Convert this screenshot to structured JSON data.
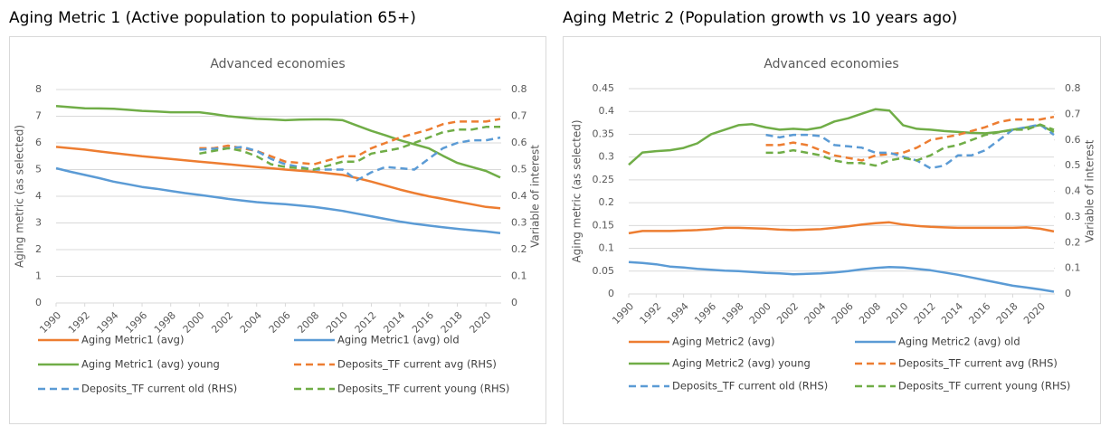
{
  "chart_data": [
    {
      "type": "line",
      "heading": "Aging Metric 1 (Active population to population 65+)",
      "title": "Advanced economies",
      "y_label": "Aging metric (as selected)",
      "y2_label": "Variable of interest",
      "x": [
        1990,
        1991,
        1992,
        1993,
        1994,
        1995,
        1996,
        1997,
        1998,
        1999,
        2000,
        2001,
        2002,
        2003,
        2004,
        2005,
        2006,
        2007,
        2008,
        2009,
        2010,
        2011,
        2012,
        2013,
        2014,
        2015,
        2016,
        2017,
        2018,
        2019,
        2020,
        2021
      ],
      "xlim": [
        1990,
        2021
      ],
      "xticks": [
        1990,
        1992,
        1994,
        1996,
        1998,
        2000,
        2002,
        2004,
        2006,
        2008,
        2010,
        2012,
        2014,
        2016,
        2018,
        2020
      ],
      "ylim": [
        0,
        8
      ],
      "yticks": [
        0,
        1,
        2,
        3,
        4,
        5,
        6,
        7,
        8
      ],
      "y2lim": [
        0,
        0.8
      ],
      "y2ticks": [
        0,
        0.1,
        0.2,
        0.3,
        0.4,
        0.5,
        0.6,
        0.7,
        0.8
      ],
      "series": [
        {
          "name": "Aging Metric1 (avg)",
          "color": "#ed7d31",
          "dashed": false,
          "values": [
            5.85,
            5.8,
            5.75,
            5.68,
            5.62,
            5.56,
            5.5,
            5.45,
            5.4,
            5.35,
            5.3,
            5.25,
            5.2,
            5.15,
            5.1,
            5.05,
            5.0,
            4.96,
            4.92,
            4.86,
            4.8,
            4.68,
            4.55,
            4.4,
            4.25,
            4.12,
            4.0,
            3.9,
            3.8,
            3.7,
            3.6,
            3.55
          ]
        },
        {
          "name": "Aging Metric1 (avg) old",
          "color": "#5b9bd5",
          "dashed": false,
          "values": [
            5.05,
            4.92,
            4.8,
            4.68,
            4.55,
            4.45,
            4.35,
            4.28,
            4.2,
            4.12,
            4.05,
            3.98,
            3.9,
            3.84,
            3.78,
            3.74,
            3.7,
            3.65,
            3.6,
            3.53,
            3.45,
            3.35,
            3.25,
            3.15,
            3.05,
            2.97,
            2.9,
            2.84,
            2.78,
            2.73,
            2.68,
            2.62
          ]
        },
        {
          "name": "Aging Metric1 (avg) young",
          "color": "#70ad47",
          "dashed": false,
          "values": [
            7.38,
            7.34,
            7.3,
            7.29,
            7.28,
            7.24,
            7.2,
            7.18,
            7.15,
            7.15,
            7.15,
            7.08,
            7.0,
            6.95,
            6.9,
            6.88,
            6.85,
            6.87,
            6.88,
            6.88,
            6.85,
            6.65,
            6.45,
            6.28,
            6.1,
            5.95,
            5.8,
            5.52,
            5.25,
            5.1,
            4.95,
            4.7
          ]
        },
        {
          "name": "Deposits_TF current avg (RHS)",
          "color": "#ed7d31",
          "dashed": true,
          "axis": "y2",
          "values": [
            null,
            null,
            null,
            null,
            null,
            null,
            null,
            null,
            null,
            null,
            0.58,
            0.58,
            0.59,
            0.58,
            0.57,
            0.55,
            0.53,
            0.525,
            0.52,
            0.535,
            0.55,
            0.55,
            0.58,
            0.6,
            0.62,
            0.635,
            0.65,
            0.67,
            0.68,
            0.68,
            0.68,
            0.69
          ]
        },
        {
          "name": "Deposits_TF current old (RHS)",
          "color": "#5b9bd5",
          "dashed": true,
          "axis": "y2",
          "values": [
            null,
            null,
            null,
            null,
            null,
            null,
            null,
            null,
            null,
            null,
            0.575,
            0.578,
            0.58,
            0.585,
            0.57,
            0.54,
            0.52,
            0.51,
            0.5,
            0.5,
            0.5,
            0.46,
            0.49,
            0.51,
            0.505,
            0.5,
            0.54,
            0.58,
            0.6,
            0.61,
            0.61,
            0.62
          ]
        },
        {
          "name": "Deposits_TF current young (RHS)",
          "color": "#70ad47",
          "dashed": true,
          "axis": "y2",
          "values": [
            null,
            null,
            null,
            null,
            null,
            null,
            null,
            null,
            null,
            null,
            0.56,
            0.57,
            0.58,
            0.57,
            0.55,
            0.52,
            0.51,
            0.505,
            0.5,
            0.515,
            0.53,
            0.53,
            0.56,
            0.57,
            0.58,
            0.6,
            0.62,
            0.64,
            0.65,
            0.65,
            0.66,
            0.66
          ]
        }
      ]
    },
    {
      "type": "line",
      "heading": "Aging Metric 2 (Population growth vs 10 years ago)",
      "title": "Advanced economies",
      "y_label": "Aging metric (as selected)",
      "y2_label": "Variable of interest",
      "x": [
        1990,
        1991,
        1992,
        1993,
        1994,
        1995,
        1996,
        1997,
        1998,
        1999,
        2000,
        2001,
        2002,
        2003,
        2004,
        2005,
        2006,
        2007,
        2008,
        2009,
        2010,
        2011,
        2012,
        2013,
        2014,
        2015,
        2016,
        2017,
        2018,
        2019,
        2020,
        2021
      ],
      "xlim": [
        1990,
        2021
      ],
      "xticks": [
        1990,
        1992,
        1994,
        1996,
        1998,
        2000,
        2002,
        2004,
        2006,
        2008,
        2010,
        2012,
        2014,
        2016,
        2018,
        2020
      ],
      "ylim": [
        0,
        0.45
      ],
      "yticks": [
        0,
        0.05,
        0.1,
        0.15,
        0.2,
        0.25,
        0.3,
        0.35,
        0.4,
        0.45
      ],
      "y2lim": [
        0,
        0.8
      ],
      "y2ticks": [
        0,
        0.1,
        0.2,
        0.3,
        0.4,
        0.5,
        0.6,
        0.7,
        0.8
      ],
      "series": [
        {
          "name": "Aging Metric2 (avg)",
          "color": "#ed7d31",
          "dashed": false,
          "values": [
            0.133,
            0.138,
            0.138,
            0.138,
            0.139,
            0.14,
            0.142,
            0.145,
            0.145,
            0.144,
            0.143,
            0.141,
            0.14,
            0.141,
            0.142,
            0.145,
            0.148,
            0.152,
            0.155,
            0.157,
            0.152,
            0.149,
            0.147,
            0.146,
            0.145,
            0.145,
            0.145,
            0.145,
            0.145,
            0.146,
            0.143,
            0.137
          ]
        },
        {
          "name": "Aging Metric2 (avg) old",
          "color": "#5b9bd5",
          "dashed": false,
          "values": [
            0.07,
            0.068,
            0.065,
            0.06,
            0.058,
            0.055,
            0.053,
            0.051,
            0.05,
            0.048,
            0.046,
            0.045,
            0.043,
            0.044,
            0.045,
            0.047,
            0.05,
            0.054,
            0.057,
            0.059,
            0.058,
            0.055,
            0.052,
            0.047,
            0.042,
            0.036,
            0.03,
            0.024,
            0.018,
            0.014,
            0.01,
            0.005
          ]
        },
        {
          "name": "Aging Metric2 (avg) young",
          "color": "#70ad47",
          "dashed": false,
          "values": [
            0.283,
            0.31,
            0.313,
            0.315,
            0.32,
            0.33,
            0.35,
            0.36,
            0.37,
            0.372,
            0.365,
            0.36,
            0.362,
            0.36,
            0.365,
            0.378,
            0.385,
            0.395,
            0.405,
            0.402,
            0.37,
            0.362,
            0.36,
            0.357,
            0.355,
            0.353,
            0.352,
            0.355,
            0.36,
            0.365,
            0.37,
            0.355
          ]
        },
        {
          "name": "Deposits_TF current avg (RHS)",
          "color": "#ed7d31",
          "dashed": true,
          "axis": "y2",
          "values": [
            null,
            null,
            null,
            null,
            null,
            null,
            null,
            null,
            null,
            null,
            0.58,
            0.58,
            0.59,
            0.58,
            0.56,
            0.54,
            0.53,
            0.52,
            0.54,
            0.545,
            0.55,
            0.57,
            0.6,
            0.61,
            0.62,
            0.635,
            0.65,
            0.67,
            0.68,
            0.68,
            0.68,
            0.69
          ]
        },
        {
          "name": "Deposits_TF current old (RHS)",
          "color": "#5b9bd5",
          "dashed": true,
          "axis": "y2",
          "values": [
            null,
            null,
            null,
            null,
            null,
            null,
            null,
            null,
            null,
            null,
            0.62,
            0.61,
            0.62,
            0.62,
            0.615,
            0.58,
            0.575,
            0.57,
            0.55,
            0.55,
            0.535,
            0.52,
            0.49,
            0.5,
            0.54,
            0.54,
            0.56,
            0.6,
            0.64,
            0.65,
            0.66,
            0.62
          ]
        },
        {
          "name": "Deposits_TF current young (RHS)",
          "color": "#70ad47",
          "dashed": true,
          "axis": "y2",
          "values": [
            null,
            null,
            null,
            null,
            null,
            null,
            null,
            null,
            null,
            null,
            0.55,
            0.55,
            0.56,
            0.55,
            0.54,
            0.52,
            0.51,
            0.51,
            0.5,
            0.52,
            0.53,
            0.52,
            0.54,
            0.57,
            0.58,
            0.6,
            0.62,
            0.63,
            0.64,
            0.64,
            0.66,
            0.64
          ]
        }
      ]
    }
  ]
}
